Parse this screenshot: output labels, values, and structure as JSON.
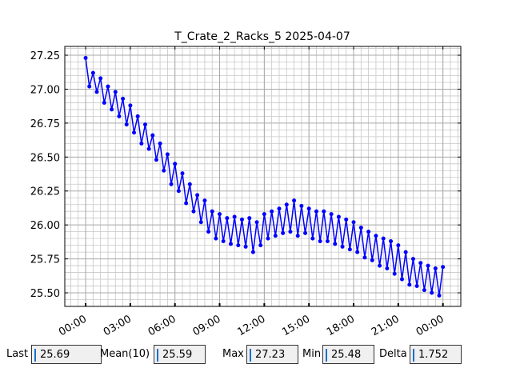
{
  "chart_data": {
    "type": "line",
    "title": "T_Crate_2_Racks_5 2025-04-07",
    "x": [
      0,
      0.25,
      0.5,
      0.75,
      1,
      1.25,
      1.5,
      1.75,
      2,
      2.25,
      2.5,
      2.75,
      3,
      3.25,
      3.5,
      3.75,
      4,
      4.25,
      4.5,
      4.75,
      5,
      5.25,
      5.5,
      5.75,
      6,
      6.25,
      6.5,
      6.75,
      7,
      7.25,
      7.5,
      7.75,
      8,
      8.25,
      8.5,
      8.75,
      9,
      9.25,
      9.5,
      9.75,
      10,
      10.25,
      10.5,
      10.75,
      11,
      11.25,
      11.5,
      11.75,
      12,
      12.25,
      12.5,
      12.75,
      13,
      13.25,
      13.5,
      13.75,
      14,
      14.25,
      14.5,
      14.75,
      15,
      15.25,
      15.5,
      15.75,
      16,
      16.25,
      16.5,
      16.75,
      17,
      17.25,
      17.5,
      17.75,
      18,
      18.25,
      18.5,
      18.75,
      19,
      19.25,
      19.5,
      19.75,
      20,
      20.25,
      20.5,
      20.75,
      21,
      21.25,
      21.5,
      21.75,
      22,
      22.25,
      22.5,
      22.75,
      23,
      23.25,
      23.5,
      23.75,
      24
    ],
    "series": [
      {
        "name": "T_Crate_2_Racks_5",
        "color": "#0000ff",
        "values": [
          27.23,
          27.02,
          27.12,
          26.98,
          27.08,
          26.9,
          27.02,
          26.85,
          26.98,
          26.8,
          26.93,
          26.74,
          26.88,
          26.68,
          26.8,
          26.6,
          26.74,
          26.56,
          26.66,
          26.48,
          26.6,
          26.4,
          26.52,
          26.3,
          26.45,
          26.25,
          26.38,
          26.16,
          26.3,
          26.1,
          26.22,
          26.02,
          26.18,
          25.95,
          26.1,
          25.9,
          26.08,
          25.88,
          26.05,
          25.86,
          26.06,
          25.85,
          26.04,
          25.84,
          26.05,
          25.8,
          26.02,
          25.85,
          26.08,
          25.9,
          26.1,
          25.92,
          26.12,
          25.94,
          26.15,
          25.95,
          26.18,
          25.92,
          26.14,
          25.94,
          26.12,
          25.9,
          26.1,
          25.88,
          26.1,
          25.88,
          26.08,
          25.86,
          26.06,
          25.84,
          26.04,
          25.82,
          26.02,
          25.8,
          25.98,
          25.76,
          25.95,
          25.74,
          25.92,
          25.7,
          25.9,
          25.68,
          25.88,
          25.64,
          25.85,
          25.6,
          25.8,
          25.56,
          25.75,
          25.55,
          25.72,
          25.52,
          25.7,
          25.5,
          25.68,
          25.48,
          25.69
        ]
      }
    ],
    "xlim": [
      -1.4,
      25.2
    ],
    "xticks": [
      {
        "value": 0,
        "label": "00:00"
      },
      {
        "value": 3,
        "label": "03:00"
      },
      {
        "value": 6,
        "label": "06:00"
      },
      {
        "value": 9,
        "label": "09:00"
      },
      {
        "value": 12,
        "label": "12:00"
      },
      {
        "value": 15,
        "label": "15:00"
      },
      {
        "value": 18,
        "label": "18:00"
      },
      {
        "value": 21,
        "label": "21:00"
      },
      {
        "value": 24,
        "label": "00:00"
      }
    ],
    "ylim": [
      25.4,
      27.315
    ],
    "yticks": [
      {
        "value": 25.5,
        "label": "25.50"
      },
      {
        "value": 25.75,
        "label": "25.75"
      },
      {
        "value": 26,
        "label": "26.00"
      },
      {
        "value": 26.25,
        "label": "26.25"
      },
      {
        "value": 26.5,
        "label": "26.50"
      },
      {
        "value": 26.75,
        "label": "26.75"
      },
      {
        "value": 27,
        "label": "27.00"
      },
      {
        "value": 27.25,
        "label": "27.25"
      }
    ],
    "grid": true
  },
  "stats": [
    {
      "label": "Last",
      "value": "25.69"
    },
    {
      "label": "Mean(10)",
      "value": "25.59"
    },
    {
      "label": "Max",
      "value": "27.23"
    },
    {
      "label": "Min",
      "value": "25.48"
    },
    {
      "label": "Delta",
      "value": "1.752"
    }
  ]
}
